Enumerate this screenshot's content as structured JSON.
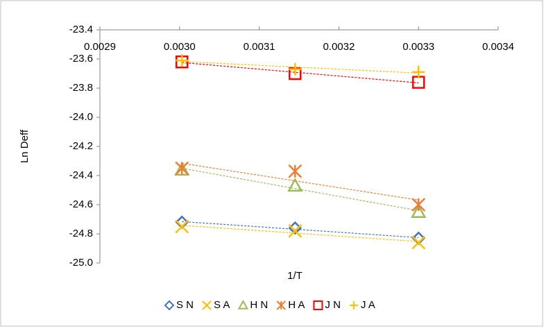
{
  "chart_data": {
    "type": "scatter",
    "xlabel": "1/T",
    "ylabel": "Ln Deff",
    "xlim": [
      0.0029,
      0.0034
    ],
    "xticks": [
      0.0029,
      {
        "value": 0.003,
        "label": "0.0030"
      },
      0.0031,
      0.0032,
      0.0033,
      0.0034
    ],
    "ylim": [
      -25.0,
      -23.4
    ],
    "yticks": [
      -23.4,
      -23.6,
      -23.8,
      {
        "value": -24.0,
        "label": "-24.0"
      },
      -24.2,
      -24.4,
      -24.6,
      -24.8,
      {
        "value": -25.0,
        "label": "-25.0"
      }
    ],
    "trendlines": true,
    "legend": "bottom",
    "series": [
      {
        "name": "S N",
        "color": "#4472c4",
        "marker": "diamond",
        "x": [
          0.003003,
          0.003145,
          0.0033
        ],
        "values": [
          -24.72,
          -24.76,
          -24.83
        ]
      },
      {
        "name": "S A",
        "color": "#ffc000",
        "marker": "x",
        "x": [
          0.003003,
          0.003145,
          0.0033
        ],
        "values": [
          -24.75,
          -24.78,
          -24.86
        ]
      },
      {
        "name": "H N",
        "color": "#9bbb59",
        "marker": "triangle",
        "x": [
          0.003003,
          0.003145,
          0.0033
        ],
        "values": [
          -24.36,
          -24.47,
          -24.65
        ]
      },
      {
        "name": "H A",
        "color": "#ed7d31",
        "marker": "asterisk",
        "x": [
          0.003003,
          0.003145,
          0.0033
        ],
        "values": [
          -24.35,
          -24.37,
          -24.6
        ]
      },
      {
        "name": "J N",
        "color": "#ff0000",
        "marker": "square",
        "x": [
          0.003003,
          0.003145,
          0.0033
        ],
        "values": [
          -23.62,
          -23.7,
          -23.76
        ]
      },
      {
        "name": "J A",
        "color": "#ffc000",
        "marker": "plus",
        "x": [
          0.003003,
          0.003145,
          0.0033
        ],
        "values": [
          -23.61,
          -23.67,
          -23.69
        ]
      }
    ]
  }
}
